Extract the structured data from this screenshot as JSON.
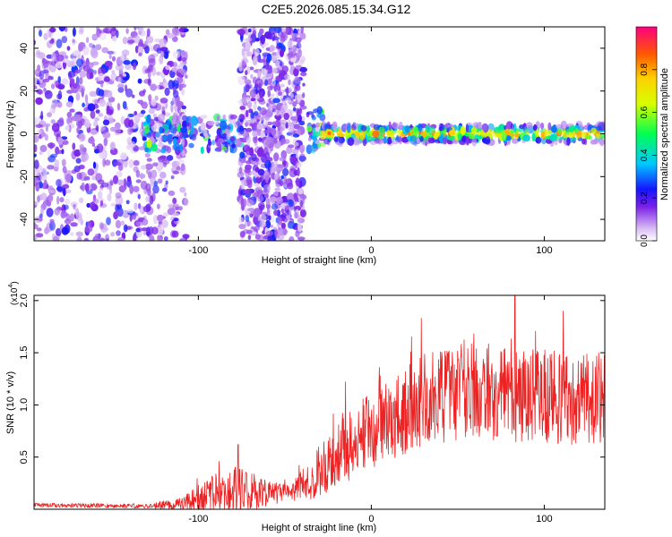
{
  "figure_title": "C2E5.2026.085.15.34.G12",
  "chart_data": [
    {
      "type": "heatmap",
      "xlabel": "Height of straight line (km)",
      "ylabel": "Frequency (Hz)",
      "xlim": [
        -195,
        135
      ],
      "ylim": [
        -50,
        50
      ],
      "xticks": [
        -100,
        0,
        100
      ],
      "xtick_labels": [
        "-100",
        "0",
        "100"
      ],
      "yticks": [
        -40,
        -20,
        0,
        20,
        40
      ],
      "ytick_labels": [
        "-40",
        "-20",
        "0",
        "20",
        "40"
      ],
      "colorbar": {
        "label": "Normalized spectral amplitude",
        "range": [
          0,
          1
        ],
        "ticks": [
          0,
          0.2,
          0.4,
          0.6,
          0.8
        ],
        "tick_labels": [
          "0.0",
          "0.2",
          "0.4",
          "0.6",
          "0.8"
        ]
      },
      "regions": [
        {
          "x_range": [
            -195,
            -107
          ],
          "y_range": [
            -50,
            50
          ],
          "amplitude": 0.15,
          "kind": "broadband noise"
        },
        {
          "x_range": [
            -130,
            -75
          ],
          "y_range": [
            -8,
            8
          ],
          "amplitude": 0.35,
          "kind": "signal band"
        },
        {
          "x_range": [
            -76,
            -39
          ],
          "y_range": [
            -50,
            50
          ],
          "amplitude": 0.15,
          "kind": "broadband noise"
        },
        {
          "x_range": [
            -37,
            -28
          ],
          "y_range": [
            -8,
            12
          ],
          "amplitude": 0.35,
          "kind": "signal onset"
        },
        {
          "x_range": [
            -28,
            135
          ],
          "y_range": [
            -4,
            4
          ],
          "amplitude": 0.95,
          "kind": "narrow carrier"
        }
      ]
    },
    {
      "type": "line",
      "xlabel": "Height of straight line (km)",
      "ylabel": "SNR (10 * v/v)",
      "y_multiplier": "(x10",
      "y_multiplier_exp": "4",
      "y_multiplier_close": ")",
      "xlim": [
        -195,
        135
      ],
      "ylim": [
        0,
        2.05
      ],
      "xticks": [
        -100,
        0,
        100
      ],
      "xtick_labels": [
        "-100",
        "0",
        "100"
      ],
      "yticks": [
        0.5,
        1.0,
        1.5,
        2.0
      ],
      "ytick_labels": [
        "0.5",
        "1.0",
        "1.5",
        "2.0"
      ],
      "line_color": "#ee2222",
      "envelope": [
        {
          "x": -195,
          "mean": 0.04,
          "amp": 0.02
        },
        {
          "x": -130,
          "mean": 0.03,
          "amp": 0.02
        },
        {
          "x": -110,
          "mean": 0.05,
          "amp": 0.06
        },
        {
          "x": -90,
          "mean": 0.15,
          "amp": 0.2
        },
        {
          "x": -80,
          "mean": 0.18,
          "amp": 0.25
        },
        {
          "x": -60,
          "mean": 0.15,
          "amp": 0.12
        },
        {
          "x": -45,
          "mean": 0.18,
          "amp": 0.1
        },
        {
          "x": -30,
          "mean": 0.35,
          "amp": 0.25
        },
        {
          "x": -10,
          "mean": 0.65,
          "amp": 0.35
        },
        {
          "x": 10,
          "mean": 0.85,
          "amp": 0.4
        },
        {
          "x": 30,
          "mean": 1.05,
          "amp": 0.45
        },
        {
          "x": 60,
          "mean": 1.1,
          "amp": 0.45
        },
        {
          "x": 100,
          "mean": 1.08,
          "amp": 0.45
        },
        {
          "x": 135,
          "mean": 1.05,
          "amp": 0.45
        }
      ],
      "peaks": [
        {
          "x": -88,
          "y": 0.46
        },
        {
          "x": -77,
          "y": 0.62
        },
        {
          "x": -15,
          "y": 1.22
        },
        {
          "x": 29,
          "y": 1.83
        },
        {
          "x": 83,
          "y": 2.05
        },
        {
          "x": 111,
          "y": 1.9
        }
      ]
    }
  ]
}
